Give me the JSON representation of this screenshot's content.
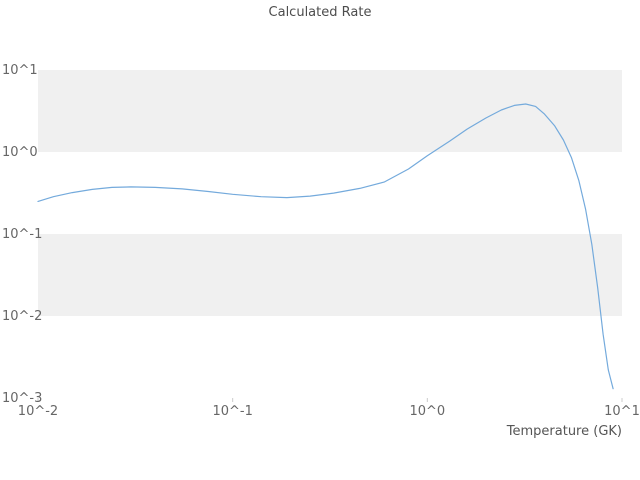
{
  "chart_data": {
    "type": "line",
    "title": "Calculated Rate",
    "xlabel": "Temperature (GK)",
    "ylabel": "",
    "x_scale": "log",
    "y_scale": "log",
    "xlim": [
      0.01,
      10
    ],
    "ylim": [
      0.001,
      10
    ],
    "grid": "horizontal-banded",
    "legend": "none",
    "band_color": "#f0f0f0",
    "line_color": "#74aadc",
    "title_color": "#4d4d4d",
    "tick_color": "#666666",
    "axis_label_color": "#555555",
    "tick_mark_color": "#cccccc",
    "x_ticks": [
      {
        "value": 0.01,
        "label": "10^-2"
      },
      {
        "value": 0.1,
        "label": "10^-1"
      },
      {
        "value": 1,
        "label": "10^0"
      },
      {
        "value": 10,
        "label": "10^1"
      }
    ],
    "y_ticks": [
      {
        "value": 10,
        "label": "10^1"
      },
      {
        "value": 1,
        "label": "10^0"
      },
      {
        "value": 0.1,
        "label": "10^-1"
      },
      {
        "value": 0.01,
        "label": "10^-2"
      },
      {
        "value": 0.001,
        "label": "10^-3"
      }
    ],
    "series": [
      {
        "name": "calculated-rate",
        "x": [
          0.01,
          0.012,
          0.015,
          0.019,
          0.024,
          0.03,
          0.04,
          0.055,
          0.075,
          0.1,
          0.14,
          0.19,
          0.25,
          0.33,
          0.45,
          0.6,
          0.8,
          1.0,
          1.3,
          1.6,
          2.0,
          2.4,
          2.8,
          3.2,
          3.6,
          4.0,
          4.5,
          5.0,
          5.5,
          6.0,
          6.5,
          7.0,
          7.5,
          8.0,
          8.5,
          9.0
        ],
        "y": [
          0.25,
          0.285,
          0.32,
          0.35,
          0.37,
          0.375,
          0.37,
          0.355,
          0.33,
          0.305,
          0.285,
          0.278,
          0.29,
          0.315,
          0.36,
          0.43,
          0.62,
          0.9,
          1.35,
          1.9,
          2.6,
          3.25,
          3.7,
          3.85,
          3.6,
          2.9,
          2.1,
          1.4,
          0.85,
          0.45,
          0.2,
          0.075,
          0.022,
          0.006,
          0.0022,
          0.0013
        ]
      }
    ]
  }
}
